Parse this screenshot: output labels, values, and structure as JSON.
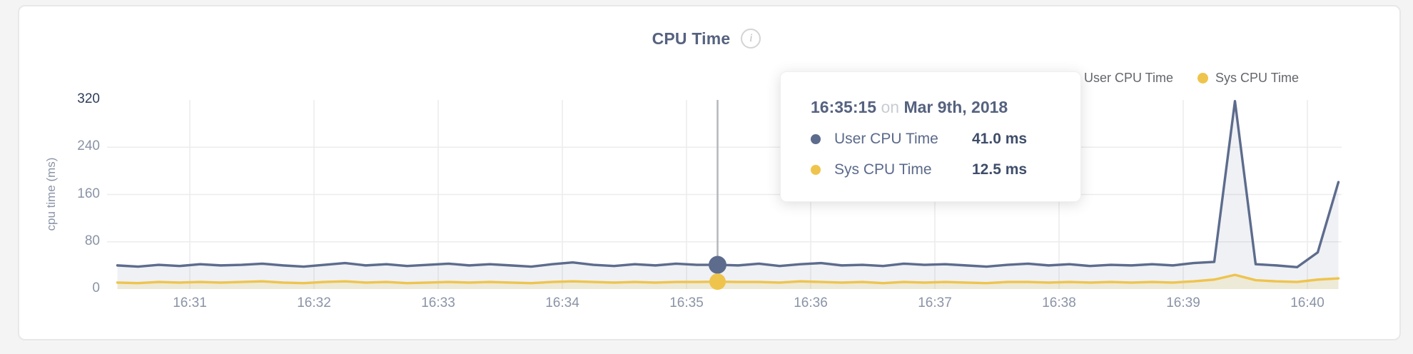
{
  "header": {
    "title": "CPU Time",
    "info_icon": "i"
  },
  "legend": {
    "items": [
      {
        "label": "User CPU Time"
      },
      {
        "label": "Sys CPU Time"
      }
    ]
  },
  "axis": {
    "y_label": "cpu time (ms)",
    "y_ticks": [
      0,
      80,
      160,
      240,
      320
    ],
    "x_ticks": [
      "16:31",
      "16:32",
      "16:33",
      "16:34",
      "16:35",
      "16:36",
      "16:37",
      "16:38",
      "16:39",
      "16:40"
    ]
  },
  "tooltip": {
    "time": "16:35:15",
    "conjunction": "on",
    "date": "Mar 9th, 2018",
    "rows": [
      {
        "label": "User CPU Time",
        "value": "41.0 ms"
      },
      {
        "label": "Sys CPU Time",
        "value": "12.5 ms"
      }
    ]
  },
  "colors": {
    "title": "#55627f",
    "grid": "#ececec",
    "tick": "#8a93a6",
    "max_tick": "#2d3d5a",
    "crosshair": "#b4b7bc",
    "card_border": "#e8e8ea",
    "page_background": "#f4f4f5"
  },
  "chart_data": {
    "type": "line",
    "title": "CPU Time",
    "xlabel": "",
    "ylabel": "cpu time (ms)",
    "ylim": [
      0,
      320
    ],
    "grid": true,
    "legend_position": "top-right",
    "x": [
      "16:30:25",
      "16:30:35",
      "16:30:45",
      "16:30:55",
      "16:31:05",
      "16:31:15",
      "16:31:25",
      "16:31:35",
      "16:31:45",
      "16:31:55",
      "16:32:05",
      "16:32:15",
      "16:32:25",
      "16:32:35",
      "16:32:45",
      "16:32:55",
      "16:33:05",
      "16:33:15",
      "16:33:25",
      "16:33:35",
      "16:33:45",
      "16:33:55",
      "16:34:05",
      "16:34:15",
      "16:34:25",
      "16:34:35",
      "16:34:45",
      "16:34:55",
      "16:35:05",
      "16:35:15",
      "16:35:25",
      "16:35:35",
      "16:35:45",
      "16:35:55",
      "16:36:05",
      "16:36:15",
      "16:36:25",
      "16:36:35",
      "16:36:45",
      "16:36:55",
      "16:37:05",
      "16:37:15",
      "16:37:25",
      "16:37:35",
      "16:37:45",
      "16:37:55",
      "16:38:05",
      "16:38:15",
      "16:38:25",
      "16:38:35",
      "16:38:45",
      "16:38:55",
      "16:39:05",
      "16:39:15",
      "16:39:25",
      "16:39:35",
      "16:39:45",
      "16:39:55",
      "16:40:05",
      "16:40:15"
    ],
    "series": [
      {
        "name": "User CPU Time",
        "color": "#5d6c8d",
        "fill": "rgba(99,113,144,0.10)",
        "values": [
          40,
          38,
          41,
          39,
          42,
          40,
          41,
          43,
          40,
          38,
          41,
          44,
          40,
          42,
          39,
          41,
          43,
          40,
          42,
          40,
          38,
          42,
          45,
          41,
          39,
          42,
          40,
          43,
          41,
          41,
          40,
          43,
          39,
          42,
          44,
          40,
          41,
          39,
          43,
          41,
          42,
          40,
          38,
          41,
          43,
          40,
          42,
          39,
          41,
          40,
          42,
          40,
          44,
          46,
          318,
          42,
          40,
          37,
          62,
          181
        ]
      },
      {
        "name": "Sys CPU Time",
        "color": "#efc44d",
        "fill": "rgba(239,196,77,0.16)",
        "values": [
          11,
          10,
          12,
          11,
          12,
          11,
          12,
          13,
          11,
          10,
          12,
          13,
          11,
          12,
          10,
          11,
          12,
          11,
          12,
          11,
          10,
          12,
          13,
          12,
          11,
          12,
          11,
          12,
          12,
          12.5,
          12,
          12,
          11,
          13,
          12,
          11,
          12,
          10,
          12,
          11,
          12,
          11,
          10,
          12,
          12,
          11,
          12,
          11,
          12,
          11,
          12,
          11,
          13,
          16,
          24,
          15,
          13,
          12,
          16,
          18
        ]
      }
    ],
    "hover": {
      "time": "16:35:15",
      "values": [
        41.0,
        12.5
      ]
    }
  }
}
